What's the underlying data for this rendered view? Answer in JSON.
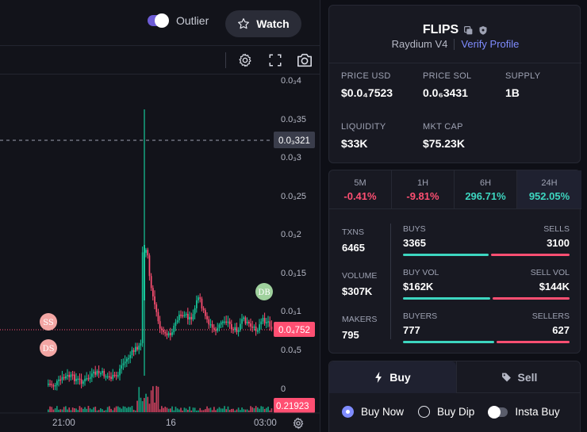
{
  "header": {
    "outlier_label": "Outlier",
    "watch_label": "Watch",
    "accent": "#6d5cd6"
  },
  "chart": {
    "y_ticks": [
      "0.0₃4",
      "0.0₃35",
      "0.0₃3",
      "0.0₃25",
      "0.0₃2",
      "0.0₃15",
      "0.0₃1",
      "0.0₄5",
      "0"
    ],
    "crosshair_price": "0.0₃321",
    "last_price": "0.0₄752",
    "volume_tag": "0.21923",
    "x_ticks": [
      "21:00",
      "16",
      "03:00"
    ],
    "markers": {
      "ss": "SS",
      "ds": "DS",
      "db": "DB"
    },
    "up_color": "#16c79a",
    "down_color": "#ff4f72"
  },
  "token": {
    "name": "FLIPS",
    "dex": "Raydium V4",
    "verify_label": "Verify Profile",
    "stats": [
      {
        "label": "PRICE USD",
        "value": "$0.0₄7523"
      },
      {
        "label": "PRICE SOL",
        "value": "0.0₆3431"
      },
      {
        "label": "SUPPLY",
        "value": "1B"
      },
      {
        "label": "LIQUIDITY",
        "value": "$33K"
      },
      {
        "label": "MKT CAP",
        "value": "$75.23K"
      }
    ]
  },
  "performance": {
    "periods": [
      {
        "label": "5M",
        "value": "-0.41%"
      },
      {
        "label": "1H",
        "value": "-9.81%"
      },
      {
        "label": "6H",
        "value": "296.71%"
      },
      {
        "label": "24H",
        "value": "952.05%"
      }
    ],
    "txns": {
      "label": "TXNS",
      "value": "6465"
    },
    "volume": {
      "label": "VOLUME",
      "value": "$307K"
    },
    "makers": {
      "label": "MAKERS",
      "value": "795"
    },
    "buys": {
      "label": "BUYS",
      "value": "3365"
    },
    "sells": {
      "label": "SELLS",
      "value": "3100"
    },
    "buy_vol": {
      "label": "BUY VOL",
      "value": "$162K"
    },
    "sell_vol": {
      "label": "SELL VOL",
      "value": "$144K"
    },
    "buyers": {
      "label": "BUYERS",
      "value": "777"
    },
    "sellers": {
      "label": "SELLERS",
      "value": "627"
    }
  },
  "trade": {
    "buy_tab": "Buy",
    "sell_tab": "Sell",
    "options": [
      "Buy Now",
      "Buy Dip",
      "Insta Buy"
    ]
  }
}
